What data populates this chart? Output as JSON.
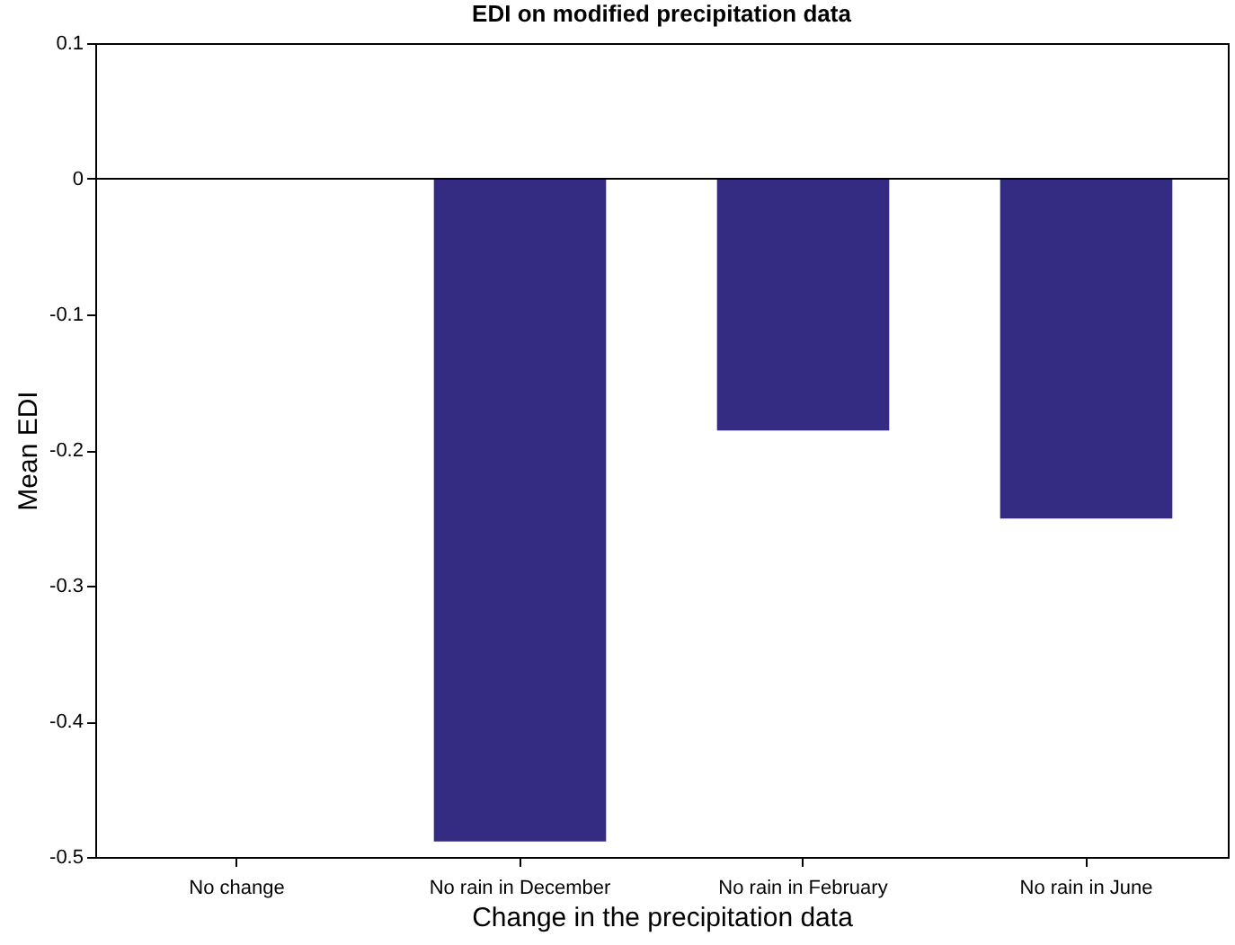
{
  "chart_data": {
    "type": "bar",
    "title": "EDI on modified precipitation data",
    "xlabel": "Change in the precipitation data",
    "ylabel": "Mean EDI",
    "categories": [
      "No change",
      "No rain in December",
      "No rain in February",
      "No rain in June"
    ],
    "values": [
      0,
      -0.488,
      -0.185,
      -0.25
    ],
    "color": "#332c82",
    "ylim": [
      -0.5,
      0.1
    ],
    "yticks": [
      -0.5,
      -0.4,
      -0.3,
      -0.2,
      -0.1,
      0,
      0.1
    ],
    "ref_lines": [
      {
        "axis": "y",
        "value": 0,
        "color": "#000000"
      }
    ],
    "grid": false
  }
}
